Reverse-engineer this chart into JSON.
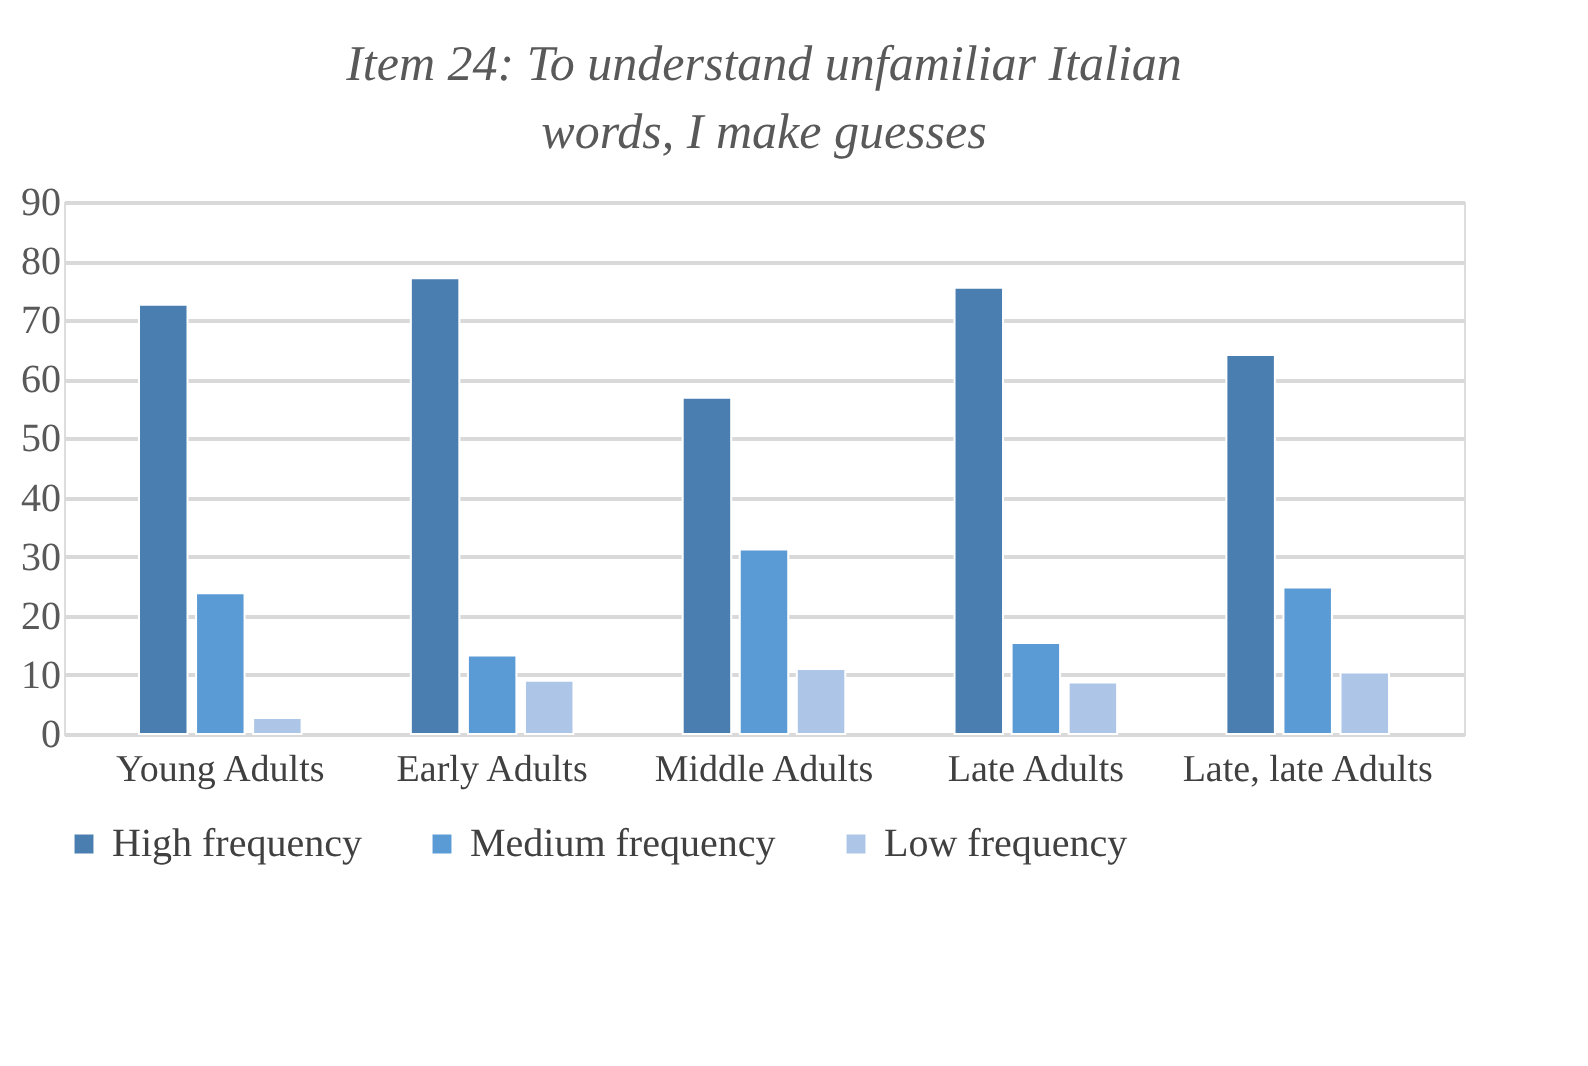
{
  "chart_data": {
    "type": "bar",
    "title": "Item 24: To understand unfamiliar Italian words, I make guesses",
    "categories": [
      "Young Adults",
      "Early Adults",
      "Middle Adults",
      "Late Adults",
      "Late, late Adults"
    ],
    "series": [
      {
        "name": "High frequency",
        "color": "#4a7eb0",
        "values": [
          72.6,
          77.1,
          56.9,
          75.5,
          64.1
        ]
      },
      {
        "name": "Medium frequency",
        "color": "#5b9bd5",
        "values": [
          23.8,
          13.3,
          31.2,
          15.4,
          24.8
        ]
      },
      {
        "name": "Low frequency",
        "color": "#adc6e7",
        "values": [
          2.7,
          9.0,
          11.0,
          8.7,
          10.4
        ]
      }
    ],
    "ylim": [
      0,
      90
    ],
    "yticks": [
      0,
      10,
      20,
      30,
      40,
      50,
      60,
      70,
      80,
      90
    ],
    "grid": "y",
    "legend": "bottom"
  }
}
